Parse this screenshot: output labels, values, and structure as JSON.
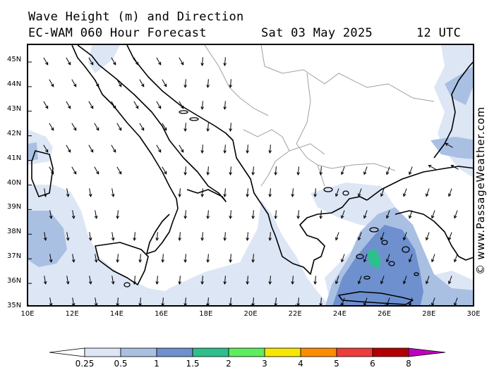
{
  "header": {
    "title": "Wave Height (m) and Direction",
    "model_line": "EC-WAM 060 Hour Forecast",
    "date": "Sat 03 May 2025",
    "time": "12 UTC"
  },
  "map": {
    "lat_labels": [
      "45N",
      "44N",
      "43N",
      "42N",
      "41N",
      "40N",
      "39N",
      "38N",
      "37N",
      "36N",
      "35N"
    ],
    "lon_labels": [
      "10E",
      "12E",
      "14E",
      "16E",
      "18E",
      "20E",
      "22E",
      "24E",
      "26E",
      "28E",
      "30E"
    ],
    "lat_range": [
      35,
      45.6
    ],
    "lon_range": [
      10,
      30
    ]
  },
  "credit": "© www.PassageWeather.com",
  "legend": {
    "labels": [
      "0.25",
      "0.5",
      "1",
      "1.5",
      "2",
      "3",
      "4",
      "5",
      "6",
      "8"
    ],
    "colors": [
      "#ffffff",
      "#dde6f5",
      "#a9c0e3",
      "#6e90cf",
      "#2ec08c",
      "#5cee5c",
      "#f7e700",
      "#ff8c00",
      "#ee3c3c",
      "#b20000",
      "#c000c0"
    ]
  },
  "colors": {
    "wave_0_25": "#dde6f5",
    "wave_0_5": "#a9c0e3",
    "wave_1": "#6e90cf",
    "wave_1_5": "#2ec08c",
    "border": "#a0a0a0"
  }
}
